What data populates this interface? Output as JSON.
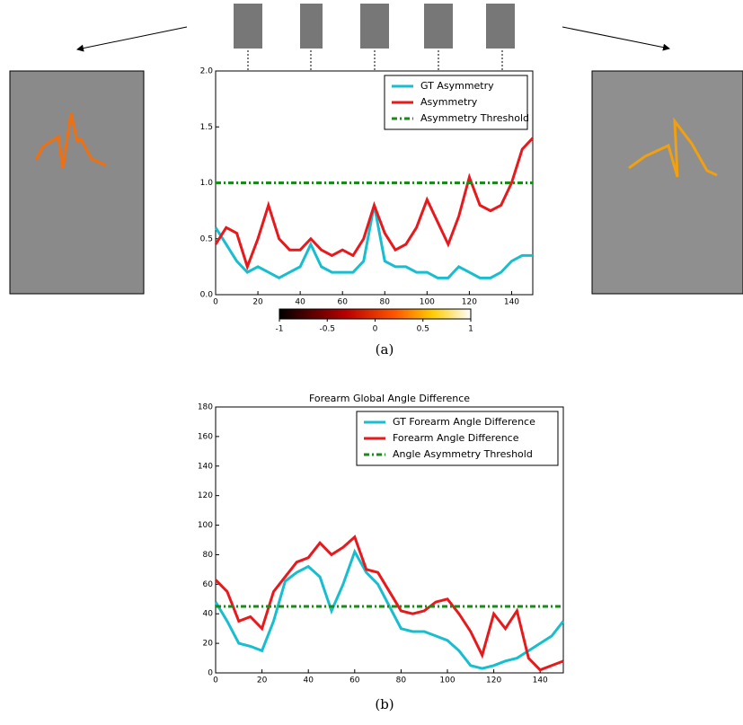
{
  "chart_data": [
    {
      "type": "line",
      "xlim": [
        0,
        150
      ],
      "ylim": [
        0,
        2
      ],
      "xticks": [
        0,
        20,
        40,
        60,
        80,
        100,
        120,
        140
      ],
      "yticks": [
        {
          "value": 0,
          "label": "0.0"
        },
        {
          "value": 0.5,
          "label": "0.5"
        },
        {
          "value": 1,
          "label": "1.0"
        },
        {
          "value": 1.5,
          "label": "1.5"
        },
        {
          "value": 2,
          "label": "2.0"
        }
      ],
      "x": [
        0,
        5,
        10,
        15,
        20,
        25,
        30,
        35,
        40,
        45,
        50,
        55,
        60,
        65,
        70,
        75,
        80,
        85,
        90,
        95,
        100,
        105,
        110,
        115,
        120,
        125,
        130,
        135,
        140,
        145,
        150
      ],
      "series": [
        {
          "name": "GT Asymmetry",
          "color": "#17becf",
          "style": "solid",
          "values": [
            0.6,
            0.45,
            0.3,
            0.2,
            0.25,
            0.2,
            0.15,
            0.2,
            0.25,
            0.45,
            0.25,
            0.2,
            0.2,
            0.2,
            0.3,
            0.8,
            0.3,
            0.25,
            0.25,
            0.2,
            0.2,
            0.15,
            0.15,
            0.25,
            0.2,
            0.15,
            0.15,
            0.2,
            0.3,
            0.35,
            0.35
          ]
        },
        {
          "name": "Asymmetry",
          "color": "#e8191c",
          "style": "solid",
          "values": [
            0.45,
            0.6,
            0.55,
            0.25,
            0.5,
            0.8,
            0.5,
            0.4,
            0.4,
            0.5,
            0.4,
            0.35,
            0.4,
            0.35,
            0.5,
            0.8,
            0.55,
            0.4,
            0.45,
            0.6,
            0.85,
            0.65,
            0.45,
            0.7,
            1.05,
            0.8,
            0.75,
            0.8,
            1.0,
            1.3,
            1.4
          ]
        },
        {
          "name": "Asymmetry Threshold",
          "color": "#1a8a1a",
          "style": "dashdot",
          "values": [
            1,
            1,
            1,
            1,
            1,
            1,
            1,
            1,
            1,
            1,
            1,
            1,
            1,
            1,
            1,
            1,
            1,
            1,
            1,
            1,
            1,
            1,
            1,
            1,
            1,
            1,
            1,
            1,
            1,
            1,
            1
          ]
        }
      ],
      "colorbar": {
        "range": [
          -1,
          1
        ],
        "ticks": [
          -1,
          -0.5,
          0,
          0.5,
          1
        ]
      }
    },
    {
      "type": "line",
      "title": "Forearm Global Angle Difference",
      "xlim": [
        0,
        150
      ],
      "ylim": [
        0,
        180
      ],
      "xticks": [
        0,
        20,
        40,
        60,
        80,
        100,
        120,
        140
      ],
      "yticks": [
        0,
        20,
        40,
        60,
        80,
        100,
        120,
        140,
        160,
        180
      ],
      "x": [
        0,
        5,
        10,
        15,
        20,
        25,
        30,
        35,
        40,
        45,
        50,
        55,
        60,
        65,
        70,
        75,
        80,
        85,
        90,
        95,
        100,
        105,
        110,
        115,
        120,
        125,
        130,
        135,
        140,
        145,
        150
      ],
      "series": [
        {
          "name": "GT Forearm Angle Difference",
          "color": "#17becf",
          "style": "solid",
          "values": [
            48,
            35,
            20,
            18,
            15,
            35,
            62,
            68,
            72,
            65,
            42,
            60,
            82,
            68,
            60,
            45,
            30,
            28,
            28,
            25,
            22,
            15,
            5,
            3,
            5,
            8,
            10,
            15,
            20,
            25,
            35
          ]
        },
        {
          "name": "Forearm Angle Difference",
          "color": "#e8191c",
          "style": "solid",
          "values": [
            63,
            55,
            35,
            38,
            30,
            55,
            65,
            75,
            78,
            88,
            80,
            85,
            92,
            70,
            68,
            55,
            42,
            40,
            42,
            48,
            50,
            40,
            28,
            12,
            40,
            30,
            42,
            10,
            2,
            5,
            8
          ]
        },
        {
          "name": "Angle Asymmetry Threshold",
          "color": "#1a8a1a",
          "style": "dashdot",
          "values": [
            45,
            45,
            45,
            45,
            45,
            45,
            45,
            45,
            45,
            45,
            45,
            45,
            45,
            45,
            45,
            45,
            45,
            45,
            45,
            45,
            45,
            45,
            45,
            45,
            45,
            45,
            45,
            45,
            45,
            45,
            45
          ]
        }
      ]
    }
  ],
  "captions": [
    "(a)",
    "(b)"
  ]
}
